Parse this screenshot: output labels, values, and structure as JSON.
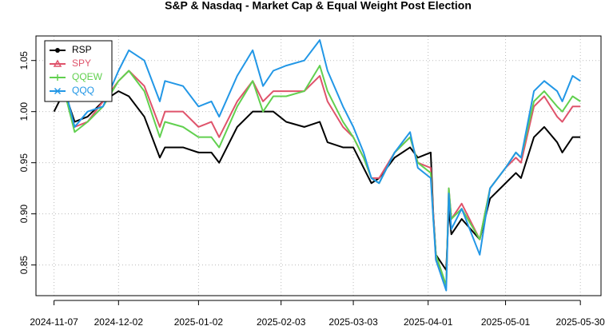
{
  "chart_data": {
    "type": "line",
    "title": "S&P & Nasdaq - Market Cap & Equal Weight Post Election",
    "x": [
      "2024-11-07",
      "2024-11-11",
      "2024-11-15",
      "2024-11-20",
      "2024-11-26",
      "2024-12-02",
      "2024-12-06",
      "2024-12-12",
      "2024-12-18",
      "2024-12-20",
      "2024-12-27",
      "2025-01-02",
      "2025-01-07",
      "2025-01-10",
      "2025-01-17",
      "2025-01-23",
      "2025-01-27",
      "2025-01-31",
      "2025-02-05",
      "2025-02-12",
      "2025-02-18",
      "2025-02-21",
      "2025-02-27",
      "2025-03-03",
      "2025-03-07",
      "2025-03-10",
      "2025-03-13",
      "2025-03-19",
      "2025-03-25",
      "2025-03-28",
      "2025-04-02",
      "2025-04-03",
      "2025-04-04",
      "2025-04-08",
      "2025-04-09",
      "2025-04-10",
      "2025-04-14",
      "2025-04-21",
      "2025-04-25",
      "2025-05-01",
      "2025-05-05",
      "2025-05-07",
      "2025-05-12",
      "2025-05-16",
      "2025-05-21",
      "2025-05-23",
      "2025-05-27",
      "2025-05-30"
    ],
    "series": [
      {
        "name": "RSP",
        "color": "#000000",
        "marker": "circle",
        "values": [
          1.0,
          1.02,
          0.99,
          0.995,
          1.01,
          1.02,
          1.015,
          0.995,
          0.955,
          0.965,
          0.965,
          0.96,
          0.96,
          0.95,
          0.985,
          1.0,
          1.0,
          1.0,
          0.99,
          0.985,
          0.99,
          0.97,
          0.965,
          0.965,
          0.945,
          0.93,
          0.935,
          0.955,
          0.965,
          0.955,
          0.96,
          0.9,
          0.86,
          0.845,
          0.905,
          0.88,
          0.895,
          0.875,
          0.915,
          0.93,
          0.94,
          0.935,
          0.975,
          0.985,
          0.97,
          0.96,
          0.975,
          0.975
        ]
      },
      {
        "name": "SPY",
        "color": "#DF536B",
        "marker": "triangle",
        "values": [
          1.01,
          1.02,
          0.985,
          0.99,
          1.01,
          1.03,
          1.04,
          1.025,
          0.985,
          1.0,
          1.0,
          0.985,
          0.99,
          0.975,
          1.01,
          1.03,
          1.01,
          1.02,
          1.02,
          1.02,
          1.035,
          1.01,
          0.985,
          0.975,
          0.955,
          0.935,
          0.935,
          0.96,
          0.975,
          0.95,
          0.945,
          0.9,
          0.855,
          0.83,
          0.925,
          0.895,
          0.91,
          0.875,
          0.925,
          0.945,
          0.955,
          0.95,
          1.005,
          1.015,
          0.995,
          0.99,
          1.005,
          1.005
        ]
      },
      {
        "name": "QQEW",
        "color": "#61D04F",
        "marker": "plus",
        "values": [
          1.01,
          1.02,
          0.98,
          0.99,
          1.005,
          1.03,
          1.04,
          1.02,
          0.975,
          0.99,
          0.985,
          0.975,
          0.975,
          0.965,
          1.005,
          1.03,
          1.0,
          1.015,
          1.015,
          1.02,
          1.045,
          1.02,
          0.99,
          0.975,
          0.955,
          0.935,
          0.93,
          0.96,
          0.975,
          0.95,
          0.94,
          0.895,
          0.86,
          0.83,
          0.925,
          0.895,
          0.905,
          0.875,
          0.925,
          0.945,
          0.96,
          0.955,
          1.01,
          1.02,
          1.005,
          1.0,
          1.015,
          1.01
        ]
      },
      {
        "name": "QQQ",
        "color": "#2297E6",
        "marker": "cross",
        "values": [
          1.01,
          1.025,
          0.985,
          1.0,
          1.005,
          1.04,
          1.06,
          1.05,
          1.01,
          1.03,
          1.025,
          1.005,
          1.01,
          0.995,
          1.035,
          1.06,
          1.025,
          1.04,
          1.045,
          1.05,
          1.07,
          1.04,
          1.005,
          0.985,
          0.96,
          0.935,
          0.93,
          0.96,
          0.98,
          0.945,
          0.935,
          0.895,
          0.855,
          0.825,
          0.92,
          0.885,
          0.905,
          0.86,
          0.925,
          0.945,
          0.96,
          0.955,
          1.02,
          1.03,
          1.02,
          1.01,
          1.035,
          1.03
        ]
      }
    ],
    "xlim": [
      "2024-10-31",
      "2025-06-07"
    ],
    "xticks": [
      "2024-11-07",
      "2024-12-02",
      "2025-01-02",
      "2025-02-03",
      "2025-03-03",
      "2025-04-01",
      "2025-05-01",
      "2025-05-30"
    ],
    "ylim": [
      0.82,
      1.074
    ],
    "yticks": [
      {
        "value": 0.85,
        "label": "0.85"
      },
      {
        "value": 0.9,
        "label": "0.90"
      },
      {
        "value": 0.95,
        "label": "0.95"
      },
      {
        "value": 1,
        "label": "1.00"
      },
      {
        "value": 1.05,
        "label": "1.05"
      }
    ],
    "grid": true,
    "legend": "top-left"
  }
}
